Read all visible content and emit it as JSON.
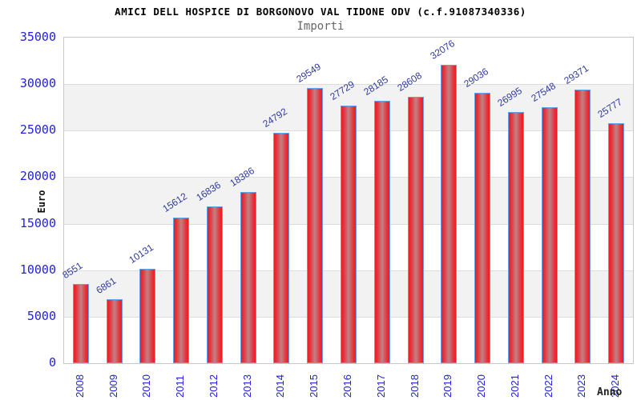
{
  "chart_data": {
    "type": "bar",
    "title": "AMICI DELL HOSPICE DI BORGONOVO VAL TIDONE ODV (c.f.91087340336)",
    "subtitle": "Importi",
    "xlabel": "Anno",
    "ylabel": "Euro",
    "categories": [
      "2008",
      "2009",
      "2010",
      "2011",
      "2012",
      "2013",
      "2014",
      "2015",
      "2016",
      "2017",
      "2018",
      "2019",
      "2020",
      "2021",
      "2022",
      "2023",
      "2024"
    ],
    "values": [
      8551,
      6861,
      10131,
      15612,
      16836,
      18386,
      24792,
      29549,
      27729,
      28185,
      28608,
      32076,
      29036,
      26995,
      27548,
      29371,
      25777
    ],
    "ylim": [
      0,
      35000
    ],
    "ytick_step": 5000,
    "yticks": [
      0,
      5000,
      10000,
      15000,
      20000,
      25000,
      30000,
      35000
    ],
    "grid": true,
    "legend_position": "none",
    "colors": {
      "bar_edge": "#ee1b24",
      "bar_center": "#c18286",
      "bar_border": "#63a2e4",
      "value_label": "#313b99",
      "tick_label": "#2222dd",
      "band_light": "#ffffff",
      "band_dark": "#f2f2f2",
      "gridline": "#dcdcdc",
      "title": "#000000",
      "subtitle": "#666666"
    }
  }
}
